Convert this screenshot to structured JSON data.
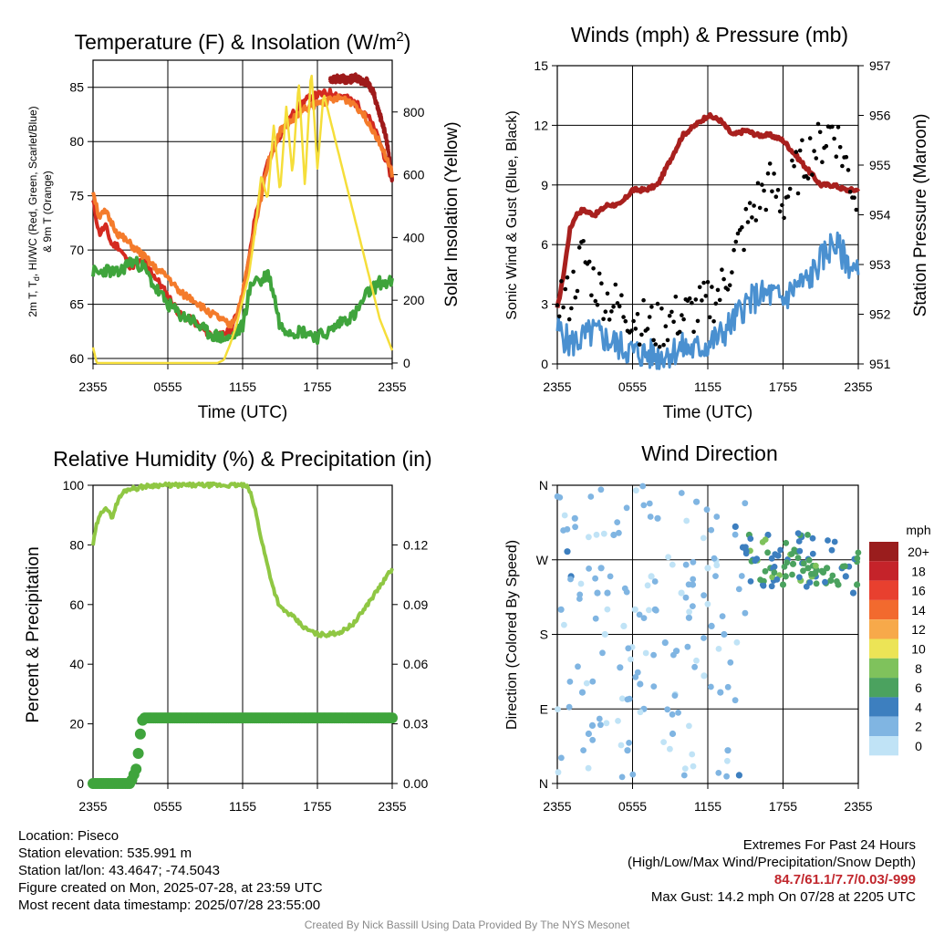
{
  "chart_data": [
    {
      "type": "line",
      "title_main": "Temperature (F) & Insolation (W/m",
      "title_sup": "2",
      "title_end": ")",
      "ylabel_left_line1": "2m T, T",
      "ylabel_left_sub": "d",
      "ylabel_left_line1_end": ", HI/WC (Red, Green, Scarlet/Blue)",
      "ylabel_left_line2": "& 9m T (Orange)",
      "ylabel_right": "Solar Insolation (Yellow)",
      "xlabel": "Time (UTC)",
      "x_ticks": [
        "2355",
        "0555",
        "1155",
        "1755",
        "2355"
      ],
      "y_ticks": [
        60,
        65,
        70,
        75,
        80,
        85
      ],
      "ylim": [
        59.5,
        87.5
      ],
      "y2_ticks": [
        0,
        200,
        400,
        600,
        800
      ],
      "y2lim": [
        -3,
        965
      ],
      "x_hours": [
        0,
        24
      ],
      "series": [
        {
          "name": "2m T",
          "color": "#d42a20",
          "axis": "left",
          "x": [
            0,
            0.5,
            1,
            1.5,
            2,
            3,
            4,
            5,
            6,
            7,
            8,
            9,
            10,
            11,
            11.5,
            12,
            12.5,
            13,
            14,
            15,
            16,
            17,
            18,
            19,
            20,
            21,
            22,
            23,
            24
          ],
          "y": [
            74.5,
            71.5,
            72.2,
            70.5,
            70.4,
            68.5,
            69.0,
            67.5,
            65.8,
            64.0,
            63.5,
            62.5,
            62.0,
            62.5,
            64,
            66,
            69,
            73,
            78,
            80.6,
            82.5,
            83.8,
            84.3,
            84.5,
            84.2,
            83.6,
            82.5,
            80,
            76.5
          ]
        },
        {
          "name": "Td",
          "color": "#3fa43c",
          "axis": "left",
          "x": [
            0,
            0.5,
            1,
            2,
            3,
            4,
            5,
            6,
            7,
            8,
            9,
            10,
            11,
            12,
            12.5,
            13,
            13.5,
            14,
            14.5,
            15,
            16,
            17,
            18,
            19,
            20,
            21,
            22,
            23,
            24
          ],
          "y": [
            68,
            67.8,
            68.2,
            67.8,
            69,
            68.5,
            66.5,
            65,
            64,
            63.5,
            62.5,
            62,
            61.8,
            63,
            66,
            67.5,
            67,
            68,
            66,
            63,
            62.5,
            62.5,
            62,
            62.5,
            63.5,
            64,
            66,
            67,
            67
          ]
        },
        {
          "name": "HI/WC",
          "color": "#9e1a1a",
          "axis": "left",
          "x": [
            19.0,
            19.5,
            20,
            20.5,
            21,
            21.5,
            22,
            22.5,
            23,
            23.5,
            24
          ],
          "y": [
            85.5,
            85.8,
            85.8,
            85.6,
            86,
            85.6,
            85.5,
            84.5,
            82.5,
            80.5,
            76.5
          ]
        },
        {
          "name": "9m T",
          "color": "#f47b2b",
          "axis": "left",
          "x": [
            0,
            0.5,
            1,
            2,
            3,
            4,
            5,
            6,
            7,
            8,
            9,
            10,
            11,
            11.5,
            12,
            13,
            14,
            15,
            16,
            17,
            18,
            19,
            20,
            21,
            22,
            23,
            24
          ],
          "y": [
            75.5,
            73,
            73.5,
            71.5,
            70.5,
            69.5,
            68.3,
            67.5,
            66,
            65.5,
            64.5,
            63.8,
            63,
            64,
            66,
            72,
            78,
            81,
            82,
            83,
            83.5,
            83.8,
            84,
            83.5,
            82,
            80,
            77
          ]
        },
        {
          "name": "Insolation",
          "color": "#f5de3a",
          "axis": "right",
          "x": [
            0,
            0.3,
            1,
            10,
            10.5,
            11,
            11.5,
            12,
            12.5,
            13,
            13.5,
            14,
            14.5,
            15,
            15.5,
            16,
            16.5,
            17,
            17.5,
            18,
            18.5,
            19,
            20,
            21,
            22,
            23,
            24
          ],
          "y": [
            50,
            0,
            0,
            0,
            10,
            60,
            120,
            200,
            280,
            420,
            600,
            520,
            760,
            540,
            820,
            600,
            900,
            560,
            940,
            620,
            860,
            780,
            620,
            460,
            300,
            140,
            40
          ]
        }
      ]
    },
    {
      "type": "line",
      "title": "Winds (mph) & Pressure (mb)",
      "ylabel_left": "Sonic Wind & Gust (Blue, Black)",
      "ylabel_right": "Station Pressure (Maroon)",
      "xlabel": "Time (UTC)",
      "x_ticks": [
        "2355",
        "0555",
        "1155",
        "1755",
        "2355"
      ],
      "y_ticks": [
        0,
        3,
        6,
        9,
        12,
        15
      ],
      "ylim": [
        0,
        15
      ],
      "y2_ticks": [
        951,
        952,
        953,
        954,
        955,
        956,
        957
      ],
      "y2lim": [
        951,
        957
      ],
      "series": [
        {
          "name": "Pressure",
          "color": "#a8201e",
          "axis": "right",
          "x": [
            0,
            0.5,
            1,
            1.5,
            2,
            3,
            4,
            5,
            6,
            7,
            8,
            9,
            10,
            11,
            12,
            13,
            14,
            15,
            16,
            17,
            18,
            19,
            20,
            21,
            22,
            23,
            24
          ],
          "y": [
            952.1,
            952.8,
            953.7,
            954.0,
            954.1,
            954.0,
            954.2,
            954.2,
            954.5,
            954.5,
            954.6,
            955.1,
            955.6,
            955.8,
            956.0,
            955.9,
            955.6,
            955.7,
            955.6,
            955.6,
            955.5,
            955.2,
            954.9,
            954.6,
            954.6,
            954.5,
            954.5
          ]
        },
        {
          "name": "Wind",
          "color": "#4a90d0",
          "axis": "left",
          "x": [
            0,
            1,
            2,
            3,
            4,
            5,
            6,
            7,
            8,
            9,
            10,
            11,
            12,
            13,
            14,
            15,
            16,
            17,
            18,
            19,
            20,
            21,
            22,
            23,
            24
          ],
          "y": [
            1.8,
            1.0,
            1.3,
            1.6,
            1.2,
            0.9,
            0.6,
            0.5,
            0.4,
            0.6,
            0.8,
            0.7,
            1.0,
            1.4,
            2.1,
            3.0,
            3.4,
            3.5,
            3.2,
            3.9,
            4.2,
            5.2,
            6.1,
            5.3,
            4.4
          ]
        },
        {
          "name": "Gust",
          "color": "#000000",
          "axis": "left",
          "points": "scatter",
          "x": [
            0,
            1,
            2,
            3,
            4,
            5,
            6,
            7,
            8,
            9,
            10,
            11,
            12,
            13,
            14,
            15,
            16,
            17,
            18,
            19,
            20,
            21,
            22,
            23,
            24
          ],
          "y": [
            3.5,
            3.2,
            5.5,
            4.0,
            3.2,
            2.8,
            2.4,
            2.0,
            1.8,
            2.2,
            2.4,
            2.6,
            3.0,
            3.6,
            5.2,
            6.8,
            8.2,
            9.0,
            8.0,
            9.5,
            10.5,
            11.0,
            12.0,
            10.0,
            8.0
          ]
        }
      ]
    },
    {
      "type": "line",
      "title": "Relative Humidity (%) & Precipitation (in)",
      "ylabel_left": "Percent & Precipitation",
      "x_ticks": [
        "2355",
        "0555",
        "1155",
        "1755",
        "2355"
      ],
      "y_ticks": [
        0,
        20,
        40,
        60,
        80,
        100
      ],
      "ylim": [
        0,
        100
      ],
      "y2_ticks": [
        "0.00",
        "0.03",
        "0.06",
        "0.09",
        "0.12"
      ],
      "y2lim": [
        0,
        0.15
      ],
      "series": [
        {
          "name": "RH",
          "color": "#8fc743",
          "axis": "left",
          "x": [
            0,
            0.3,
            0.7,
            1,
            1.5,
            2,
            2.5,
            3,
            3.5,
            4,
            5,
            6,
            8,
            10,
            12,
            12.5,
            13,
            13.5,
            14,
            14.5,
            15,
            16,
            17,
            18,
            19,
            20,
            21,
            22,
            23,
            24
          ],
          "y": [
            80,
            87,
            91,
            93,
            89,
            95,
            98,
            99,
            99,
            99.5,
            100,
            100,
            100,
            100,
            100,
            99,
            92,
            82,
            73,
            65,
            59,
            56,
            52,
            50,
            50,
            51,
            54,
            60,
            66,
            72
          ]
        },
        {
          "name": "Precip",
          "color": "#3fa43c",
          "axis": "right",
          "points": "scatter",
          "x": [
            0,
            0.5,
            1,
            1.5,
            2,
            2.5,
            3,
            3.5,
            3.8,
            4.0,
            4.2,
            4.5,
            5,
            6,
            7,
            8,
            9,
            10,
            11,
            12,
            13,
            14,
            15,
            16,
            17,
            18,
            19,
            20,
            21,
            22,
            23,
            24
          ],
          "y": [
            0,
            0,
            0,
            0,
            0,
            0,
            0,
            0.008,
            0.025,
            0.033,
            0.033,
            0.033,
            0.033,
            0.033,
            0.033,
            0.033,
            0.033,
            0.033,
            0.033,
            0.033,
            0.033,
            0.033,
            0.033,
            0.033,
            0.033,
            0.033,
            0.033,
            0.033,
            0.033,
            0.033,
            0.033,
            0.033
          ]
        }
      ]
    },
    {
      "type": "scatter",
      "title": "Wind Direction",
      "ylabel_left": "Direction (Colored By Speed)",
      "x_ticks": [
        "2355",
        "0555",
        "1155",
        "1755",
        "2355"
      ],
      "y_ticks": [
        "N",
        "E",
        "S",
        "W",
        "N"
      ],
      "ylim": [
        0,
        360
      ],
      "legend": {
        "title": "mph",
        "labels": [
          "20+",
          "18",
          "16",
          "14",
          "12",
          "10",
          "8",
          "6",
          "4",
          "2",
          "0"
        ],
        "colors": [
          "#9a1d1d",
          "#c5232a",
          "#e8402f",
          "#f26a2e",
          "#f7a94a",
          "#ece456",
          "#7fc25c",
          "#4ba25f",
          "#3d7fbf",
          "#80b5e2",
          "#c0e3f6"
        ],
        "position": "right"
      },
      "series": [
        {
          "name": "direction",
          "x": [
            0.3,
            0.8,
            1.4,
            2.0,
            2.5,
            3.2,
            3.8,
            4.5,
            5.0,
            5.6,
            6.2,
            6.9,
            7.5,
            8.0,
            8.6,
            9.2,
            9.9,
            10.5,
            11.1,
            11.7,
            12.3,
            13.0,
            13.6,
            14.2,
            14.8,
            15.3,
            15.9,
            16.4,
            17.0,
            17.6,
            18.2,
            18.8,
            19.4,
            20.0,
            20.6,
            21.2,
            21.8,
            22.4,
            23.0,
            23.6,
            1.1,
            2.8,
            4.0,
            5.3,
            6.6,
            7.8,
            9.5,
            10.8,
            12.0,
            13.3,
            14.5,
            15.6,
            16.8,
            18.0,
            19.1,
            20.3,
            21.5,
            22.7,
            23.9,
            3.5
          ],
          "y": [
            210,
            280,
            320,
            110,
            60,
            230,
            180,
            300,
            140,
            40,
            210,
            90,
            250,
            320,
            170,
            60,
            230,
            200,
            340,
            130,
            190,
            110,
            40,
            310,
            285,
            300,
            270,
            240,
            260,
            275,
            250,
            265,
            245,
            260,
            250,
            255,
            245,
            240,
            250,
            230,
            250,
            70,
            230,
            190,
            120,
            210,
            160,
            240,
            260,
            180,
            10,
            270,
            300,
            240,
            280,
            250,
            260,
            260,
            240,
            260
          ],
          "speed": [
            2,
            3,
            2,
            1,
            2,
            1,
            0,
            1,
            2,
            1,
            0,
            2,
            0,
            1,
            2,
            1,
            0,
            1,
            1,
            0,
            1,
            1,
            2,
            3,
            4,
            5,
            5,
            4,
            6,
            4,
            6,
            5,
            7,
            6,
            4,
            6,
            5,
            6,
            4,
            4,
            3,
            2,
            1,
            0,
            2,
            1,
            2,
            1,
            0,
            1,
            3,
            4,
            4,
            5,
            6,
            7,
            5,
            4,
            5,
            2
          ]
        }
      ]
    }
  ],
  "info": {
    "location": "Location: Piseco",
    "elevation": "Station elevation: 535.991 m",
    "latlon": "Station lat/lon: 43.4647; -74.5043",
    "created": "Figure created on Mon, 2025-07-28, at 23:59 UTC",
    "recent": "Most recent data timestamp: 2025/07/28 23:55:00"
  },
  "extremes": {
    "title": "Extremes For Past 24 Hours",
    "subtitle": "(High/Low/Max Wind/Precipitation/Snow Depth)",
    "values": "84.7/61.1/7.7/0.03/-999",
    "values_color": "#c1272d",
    "gust": "Max Gust: 14.2 mph On 07/28 at 2205 UTC"
  },
  "credit": "Created By Nick Bassill Using Data Provided By The NYS Mesonet"
}
